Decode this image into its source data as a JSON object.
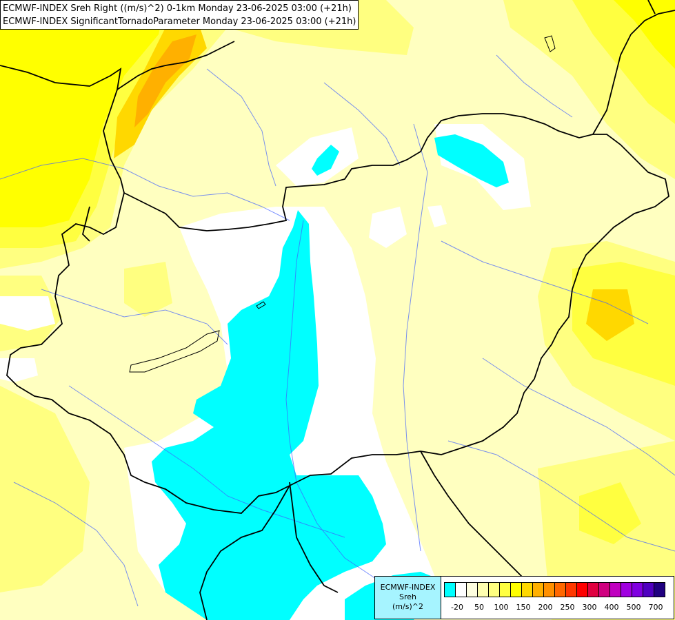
{
  "title": {
    "line1": "ECMWF-INDEX Sreh Right ((m/s)^2) 0-1km Monday 23-06-2025 03:00 (+21h)",
    "line2": "ECMWF-INDEX SignificantTornadoParameter Monday 23-06-2025 03:00 (+21h)"
  },
  "legend": {
    "line1": "ECMWF-INDEX",
    "line2": "Sreh",
    "line3": "(m/s)^2",
    "colors": [
      "#00ffff",
      "#ffffff",
      "#ffffe0",
      "#ffffb0",
      "#ffff80",
      "#ffff40",
      "#ffff00",
      "#ffd800",
      "#ffb000",
      "#ff9000",
      "#ff6800",
      "#ff3800",
      "#ff0000",
      "#e00040",
      "#d00080",
      "#c000c0",
      "#a000e0",
      "#8000e0",
      "#5000c0",
      "#200080"
    ],
    "ticks": [
      "-20",
      "50",
      "100",
      "150",
      "200",
      "250",
      "300",
      "400",
      "500",
      "700"
    ]
  },
  "colors": {
    "cyan": "#00ffff",
    "white": "#ffffff",
    "pale": "#ffffc0",
    "light_yellow": "#ffff80",
    "yellow": "#ffff00",
    "gold": "#ffd800",
    "orange": "#ffb000",
    "border": "#000000",
    "river": "#4060ff"
  }
}
